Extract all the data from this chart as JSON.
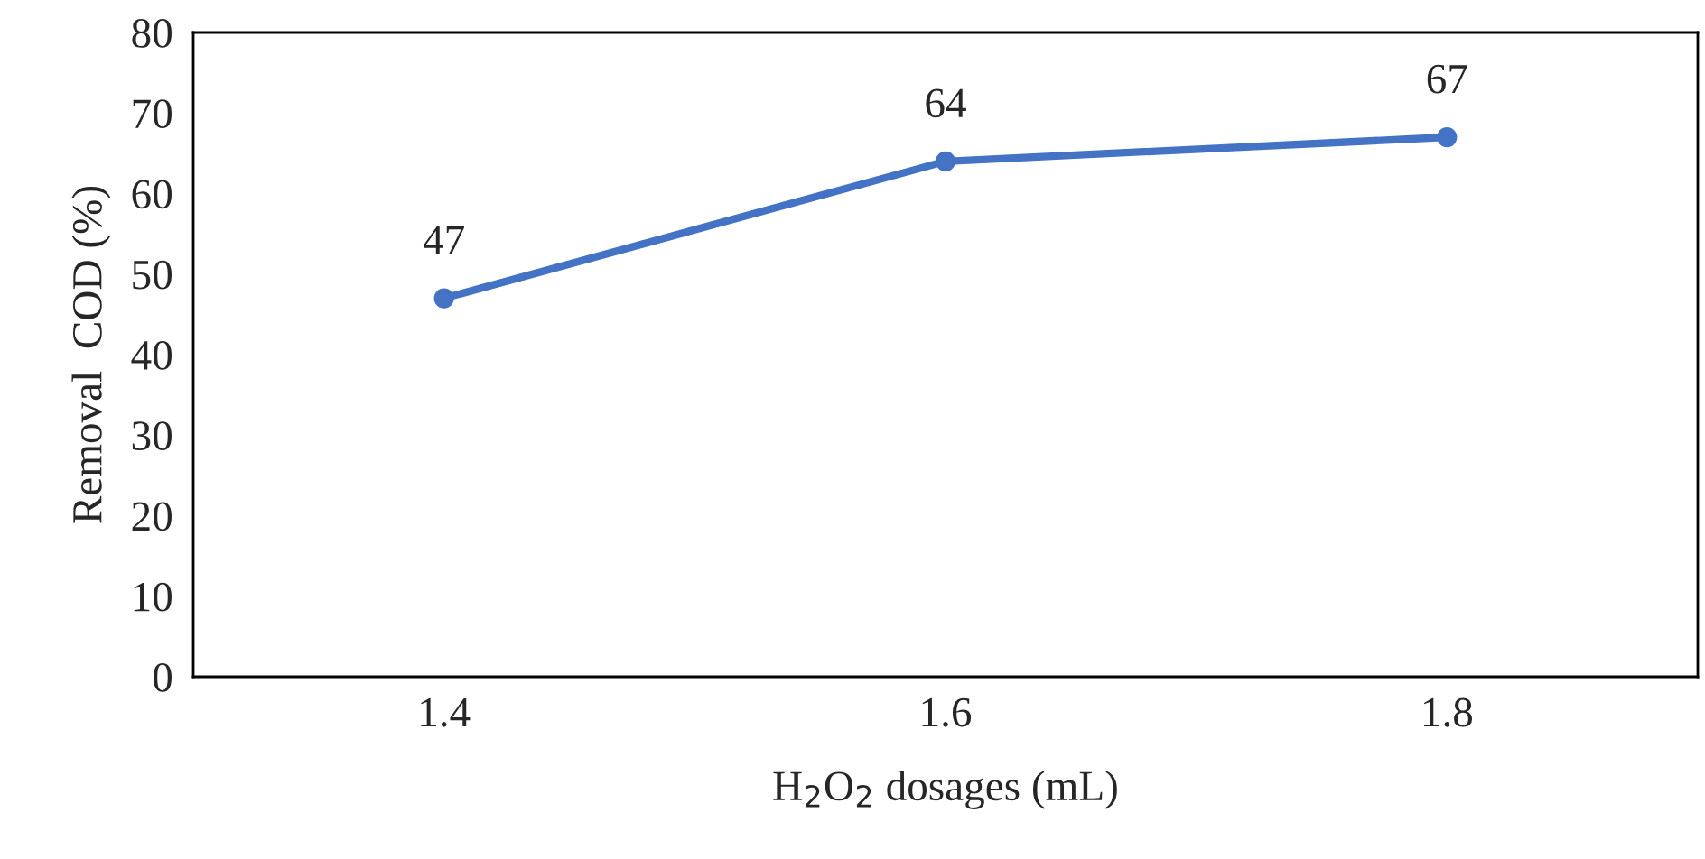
{
  "chart_data": {
    "type": "line",
    "xlabel": "H$_{2}$O$_{2}$ dosages (mL)",
    "ylabel": "Removal  COD (%)",
    "categories": [
      "1.4",
      "1.6",
      "1.8"
    ],
    "series": [
      {
        "color": "#4472c4",
        "values": [
          47,
          64,
          67
        ]
      }
    ],
    "ylim": [
      0,
      80
    ],
    "yticks": [
      0,
      10,
      20,
      30,
      40,
      50,
      60,
      70,
      80
    ],
    "marker": "circle",
    "line_style": "solid",
    "data_labels": true,
    "grid": false,
    "legend": false
  }
}
